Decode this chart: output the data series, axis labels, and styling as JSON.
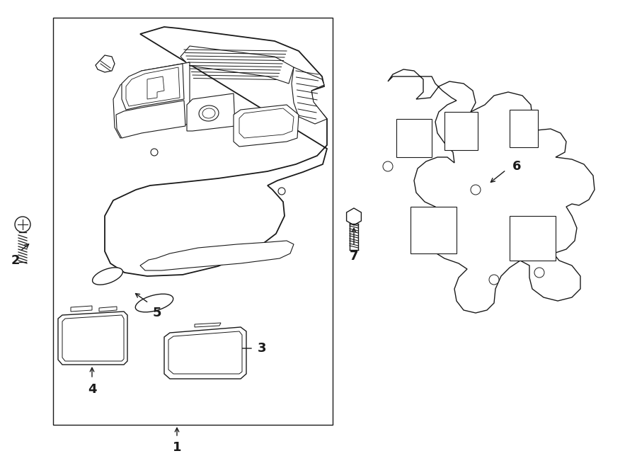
{
  "background_color": "#ffffff",
  "line_color": "#1a1a1a",
  "lw": 1.0,
  "fig_width": 9.0,
  "fig_height": 6.61,
  "dpi": 100
}
